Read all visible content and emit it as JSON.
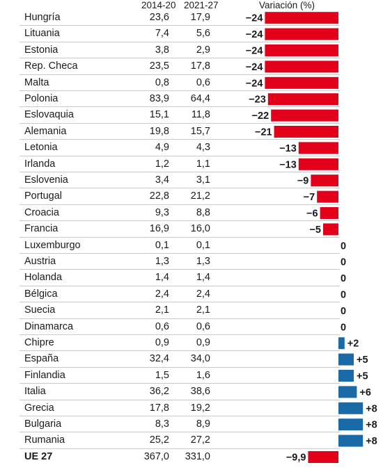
{
  "chart_data": {
    "type": "table",
    "columns": [
      "",
      "2014-20",
      "2021-27",
      "Variación (%)"
    ],
    "rows": [
      {
        "country": "Hungría",
        "v2014": "23,6",
        "v2021": "17,9",
        "change": -24,
        "change_label": "−24"
      },
      {
        "country": "Lituania",
        "v2014": "7,4",
        "v2021": "5,6",
        "change": -24,
        "change_label": "−24"
      },
      {
        "country": "Estonia",
        "v2014": "3,8",
        "v2021": "2,9",
        "change": -24,
        "change_label": "−24"
      },
      {
        "country": "Rep. Checa",
        "v2014": "23,5",
        "v2021": "17,8",
        "change": -24,
        "change_label": "−24"
      },
      {
        "country": "Malta",
        "v2014": "0,8",
        "v2021": "0,6",
        "change": -24,
        "change_label": "−24"
      },
      {
        "country": "Polonia",
        "v2014": "83,9",
        "v2021": "64,4",
        "change": -23,
        "change_label": "−23"
      },
      {
        "country": "Eslovaquia",
        "v2014": "15,1",
        "v2021": "11,8",
        "change": -22,
        "change_label": "−22"
      },
      {
        "country": "Alemania",
        "v2014": "19,8",
        "v2021": "15,7",
        "change": -21,
        "change_label": "−21"
      },
      {
        "country": "Letonia",
        "v2014": "4,9",
        "v2021": "4,3",
        "change": -13,
        "change_label": "−13"
      },
      {
        "country": "Irlanda",
        "v2014": "1,2",
        "v2021": "1,1",
        "change": -13,
        "change_label": "−13"
      },
      {
        "country": "Eslovenia",
        "v2014": "3,4",
        "v2021": "3,1",
        "change": -9,
        "change_label": "−9"
      },
      {
        "country": "Portugal",
        "v2014": "22,8",
        "v2021": "21,2",
        "change": -7,
        "change_label": "−7"
      },
      {
        "country": "Croacia",
        "v2014": "9,3",
        "v2021": "8,8",
        "change": -6,
        "change_label": "−6"
      },
      {
        "country": "Francia",
        "v2014": "16,9",
        "v2021": "16,0",
        "change": -5,
        "change_label": "−5"
      },
      {
        "country": "Luxemburgo",
        "v2014": "0,1",
        "v2021": "0,1",
        "change": 0,
        "change_label": "0"
      },
      {
        "country": "Austria",
        "v2014": "1,3",
        "v2021": "1,3",
        "change": 0,
        "change_label": "0"
      },
      {
        "country": "Holanda",
        "v2014": "1,4",
        "v2021": "1,4",
        "change": 0,
        "change_label": "0"
      },
      {
        "country": "Bélgica",
        "v2014": "2,4",
        "v2021": "2,4",
        "change": 0,
        "change_label": "0"
      },
      {
        "country": "Suecia",
        "v2014": "2,1",
        "v2021": "2,1",
        "change": 0,
        "change_label": "0"
      },
      {
        "country": "Dinamarca",
        "v2014": "0,6",
        "v2021": "0,6",
        "change": 0,
        "change_label": "0"
      },
      {
        "country": "Chipre",
        "v2014": "0,9",
        "v2021": "0,9",
        "change": 2,
        "change_label": "+2"
      },
      {
        "country": "España",
        "v2014": "32,4",
        "v2021": "34,0",
        "change": 5,
        "change_label": "+5"
      },
      {
        "country": "Finlandia",
        "v2014": "1,5",
        "v2021": "1,6",
        "change": 5,
        "change_label": "+5"
      },
      {
        "country": "Italia",
        "v2014": "36,2",
        "v2021": "38,6",
        "change": 6,
        "change_label": "+6"
      },
      {
        "country": "Grecia",
        "v2014": "17,8",
        "v2021": "19,2",
        "change": 8,
        "change_label": "+8"
      },
      {
        "country": "Bulgaria",
        "v2014": "8,3",
        "v2021": "8,9",
        "change": 8,
        "change_label": "+8"
      },
      {
        "country": "Rumania",
        "v2014": "25,2",
        "v2021": "27,2",
        "change": 8,
        "change_label": "+8"
      }
    ],
    "total": {
      "country": "UE 27",
      "v2014": "367,0",
      "v2021": "331,0",
      "change": -9.9,
      "change_label": "−9,9"
    },
    "colors": {
      "negative": "#e2001a",
      "positive": "#1a6aa8"
    }
  }
}
